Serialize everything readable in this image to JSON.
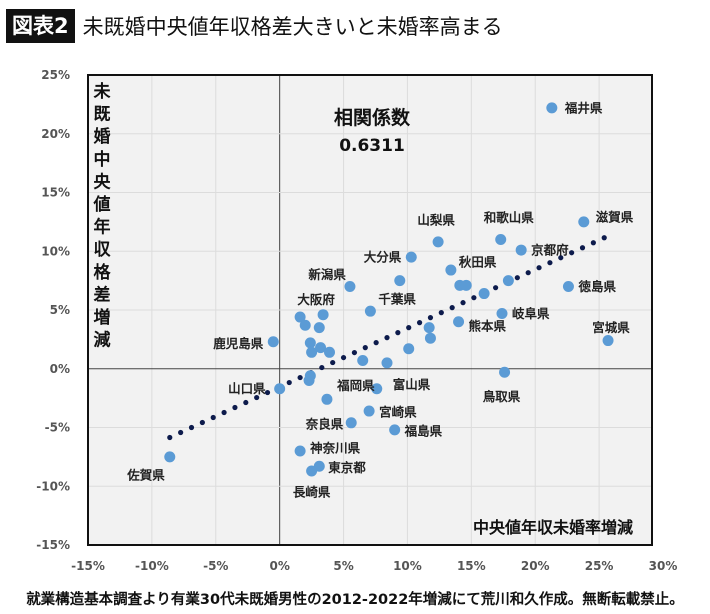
{
  "header": {
    "badge": "図表2",
    "title": "未既婚中央値年収格差大きいと未婚率高まる"
  },
  "footer": "就業構造基本調査より有業30代未既婚男性の2012-2022年増減にて荒川和久作成。無断転載禁止。",
  "colors": {
    "point": "#5b9bd5",
    "trend": "#0d1b4c",
    "plot_bg": "#f2f2f2",
    "grid": "#dcdcdc"
  },
  "chart_data": {
    "type": "scatter",
    "title": "未既婚中央値年収格差大きいと未婚率高まる",
    "xlabel": "中央値年収未婚率増減",
    "ylabel": "未既婚中央値年収格差増減",
    "xlim": [
      -15,
      30
    ],
    "ylim": [
      -15,
      25
    ],
    "xticks": [
      "-15%",
      "-10%",
      "-5%",
      "0%",
      "5%",
      "10%",
      "15%",
      "20%",
      "25%",
      "30%"
    ],
    "yticks": [
      "25%",
      "20%",
      "15%",
      "10%",
      "5%",
      "0%",
      "-5%",
      "-10%",
      "-15%"
    ],
    "grid": true,
    "annotation": {
      "label": "相関係数",
      "value": "0.6311"
    },
    "trendline": {
      "slope": 0.5,
      "intercept": -1.55,
      "x_range": [
        -8.6,
        25.7
      ]
    },
    "points": [
      {
        "name": "福井県",
        "x": 21.3,
        "y": 22.2
      },
      {
        "name": "滋賀県",
        "x": 23.8,
        "y": 12.5
      },
      {
        "name": "和歌山県",
        "x": 17.3,
        "y": 11.0
      },
      {
        "name": "山梨県",
        "x": 12.4,
        "y": 10.8
      },
      {
        "name": "京都府",
        "x": 18.9,
        "y": 10.1
      },
      {
        "name": "大分県",
        "x": 10.3,
        "y": 9.5
      },
      {
        "name": "秋田県",
        "x": 13.4,
        "y": 8.4
      },
      {
        "name": "新潟県",
        "x": 5.5,
        "y": 7.0
      },
      {
        "name": "徳島県",
        "x": 22.6,
        "y": 7.0
      },
      {
        "name": "岐阜県",
        "x": 17.4,
        "y": 4.7
      },
      {
        "name": "熊本県",
        "x": 14.0,
        "y": 4.0
      },
      {
        "name": "宮城県",
        "x": 25.7,
        "y": 2.4
      },
      {
        "name": "鳥取県",
        "x": 17.6,
        "y": -0.3
      },
      {
        "name": "千葉県",
        "x": 7.1,
        "y": 4.9
      },
      {
        "name": "大阪府",
        "x": 3.4,
        "y": 4.6
      },
      {
        "name": "鹿児島県",
        "x": -0.5,
        "y": 2.3
      },
      {
        "name": "山口県",
        "x": 0.0,
        "y": -1.7
      },
      {
        "name": "福岡県",
        "x": 3.7,
        "y": -2.6
      },
      {
        "name": "富山県",
        "x": 7.6,
        "y": -1.7
      },
      {
        "name": "宮崎県",
        "x": 7.0,
        "y": -3.6
      },
      {
        "name": "奈良県",
        "x": 5.6,
        "y": -4.6
      },
      {
        "name": "福島県",
        "x": 9.0,
        "y": -5.2
      },
      {
        "name": "神奈川県",
        "x": 1.6,
        "y": -7.0
      },
      {
        "name": "東京都",
        "x": 3.1,
        "y": -8.3
      },
      {
        "name": "長崎県",
        "x": 2.5,
        "y": -8.7
      },
      {
        "name": "佐賀県",
        "x": -8.6,
        "y": -7.5
      },
      {
        "name": "",
        "x": 9.4,
        "y": 7.5
      },
      {
        "name": "",
        "x": 14.1,
        "y": 7.1
      },
      {
        "name": "",
        "x": 14.6,
        "y": 7.1
      },
      {
        "name": "",
        "x": 16.0,
        "y": 6.4
      },
      {
        "name": "",
        "x": 17.9,
        "y": 7.5
      },
      {
        "name": "",
        "x": 1.6,
        "y": 4.4
      },
      {
        "name": "",
        "x": 2.0,
        "y": 3.7
      },
      {
        "name": "",
        "x": 3.1,
        "y": 3.5
      },
      {
        "name": "",
        "x": 2.4,
        "y": 2.2
      },
      {
        "name": "",
        "x": 2.5,
        "y": 1.4
      },
      {
        "name": "",
        "x": 3.2,
        "y": 1.8
      },
      {
        "name": "",
        "x": 3.9,
        "y": 1.4
      },
      {
        "name": "",
        "x": 10.1,
        "y": 1.7
      },
      {
        "name": "",
        "x": 6.5,
        "y": 0.7
      },
      {
        "name": "",
        "x": 8.4,
        "y": 0.5
      },
      {
        "name": "",
        "x": 11.7,
        "y": 3.5
      },
      {
        "name": "",
        "x": 11.8,
        "y": 2.6
      },
      {
        "name": "",
        "x": 2.3,
        "y": -1.0
      },
      {
        "name": "",
        "x": 2.4,
        "y": -0.6
      }
    ]
  }
}
